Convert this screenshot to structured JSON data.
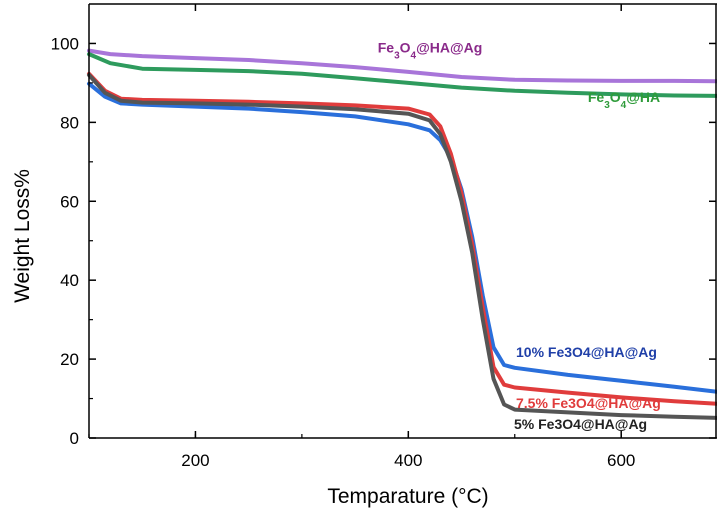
{
  "chart_data": {
    "type": "line",
    "xlabel": "Temparature (°C)",
    "ylabel": "Weight Loss%",
    "xlim": [
      100,
      690
    ],
    "ylim": [
      0,
      110
    ],
    "xticks": [
      200,
      400,
      600
    ],
    "yticks": [
      0,
      20,
      40,
      60,
      80,
      100
    ],
    "grid": false,
    "series": [
      {
        "name": "Fe3O4@HA@Ag",
        "label_parts": [
          {
            "text": "Fe",
            "sub": false
          },
          {
            "text": "3",
            "sub": true
          },
          {
            "text": "O",
            "sub": false
          },
          {
            "text": "4",
            "sub": true
          },
          {
            "text": "@HA@Ag",
            "sub": false
          }
        ],
        "color": "#a875d9",
        "x": [
          100,
          120,
          150,
          200,
          250,
          300,
          350,
          400,
          450,
          500,
          550,
          600,
          650,
          690
        ],
        "y": [
          98.2,
          97.3,
          96.8,
          96.3,
          95.8,
          95.0,
          94.0,
          92.8,
          91.5,
          90.8,
          90.6,
          90.5,
          90.5,
          90.4
        ]
      },
      {
        "name": "Fe3O4@HA",
        "label_parts": [
          {
            "text": "Fe",
            "sub": false
          },
          {
            "text": "3",
            "sub": true
          },
          {
            "text": "O",
            "sub": false
          },
          {
            "text": "4",
            "sub": true
          },
          {
            "text": "@HA",
            "sub": false
          }
        ],
        "color": "#2e9b5d",
        "x": [
          100,
          120,
          150,
          200,
          250,
          300,
          350,
          400,
          450,
          500,
          550,
          600,
          650,
          690
        ],
        "y": [
          97.3,
          95.0,
          93.6,
          93.3,
          93.0,
          92.3,
          91.2,
          90.0,
          88.8,
          88.0,
          87.5,
          87.1,
          86.8,
          86.7
        ]
      },
      {
        "name": "10% Fe3O4@HA@Ag",
        "label_parts": [
          {
            "text": "10% Fe3O4@HA@Ag",
            "sub": false
          }
        ],
        "color": "#2a6fdb",
        "x": [
          100,
          115,
          130,
          150,
          200,
          250,
          300,
          350,
          400,
          420,
          430,
          440,
          450,
          460,
          470,
          480,
          490,
          500,
          550,
          600,
          650,
          690
        ],
        "y": [
          89.8,
          86.5,
          84.8,
          84.5,
          84.0,
          83.5,
          82.6,
          81.5,
          79.5,
          78.0,
          75.5,
          71.0,
          63.0,
          51.0,
          36.0,
          23.0,
          18.5,
          17.8,
          16.0,
          14.5,
          13.0,
          11.7
        ]
      },
      {
        "name": "7.5% Fe3O4@HA@Ag",
        "label_parts": [
          {
            "text": "7.5% Fe3O4@HA@Ag",
            "sub": false
          }
        ],
        "color": "#e03c3c",
        "x": [
          100,
          115,
          130,
          150,
          200,
          250,
          300,
          350,
          400,
          420,
          430,
          440,
          450,
          460,
          470,
          480,
          490,
          500,
          550,
          600,
          650,
          690
        ],
        "y": [
          92.3,
          88.0,
          86.0,
          85.7,
          85.5,
          85.2,
          84.8,
          84.3,
          83.5,
          82.0,
          79.0,
          72.0,
          62.0,
          49.0,
          33.0,
          18.0,
          13.5,
          12.8,
          11.5,
          10.3,
          9.3,
          8.7
        ]
      },
      {
        "name": "5% Fe3O4@HA@Ag",
        "label_parts": [
          {
            "text": "5% Fe3O4@HA@Ag",
            "sub": false
          }
        ],
        "color": "#555555",
        "x": [
          100,
          115,
          130,
          150,
          200,
          250,
          300,
          350,
          400,
          420,
          430,
          440,
          450,
          460,
          470,
          480,
          490,
          500,
          550,
          600,
          650,
          690
        ],
        "y": [
          92.0,
          87.5,
          85.5,
          85.0,
          84.8,
          84.5,
          84.0,
          83.3,
          82.2,
          80.5,
          77.0,
          70.0,
          60.0,
          47.0,
          30.0,
          15.0,
          8.5,
          7.2,
          6.5,
          5.8,
          5.4,
          5.1
        ]
      }
    ]
  }
}
